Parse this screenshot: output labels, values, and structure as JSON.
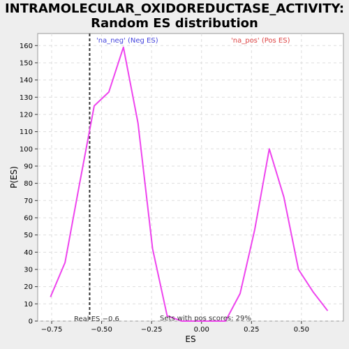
{
  "title_line1": "INTRAMOLECULAR_OXIDOREDUCTASE_ACTIVITY:",
  "title_line2": "Random ES distribution",
  "chart_data": {
    "type": "line",
    "xlabel": "ES",
    "ylabel": "P(ES)",
    "xlim": [
      -0.82,
      0.71
    ],
    "ylim": [
      0,
      167
    ],
    "x_ticks": [
      -0.75,
      -0.5,
      -0.25,
      0.0,
      0.25,
      0.5
    ],
    "x_tick_labels": [
      "−0.75",
      "−0.50",
      "−0.25",
      "0.00",
      "0.25",
      "0.50"
    ],
    "y_ticks": [
      0,
      10,
      20,
      30,
      40,
      50,
      60,
      70,
      80,
      90,
      100,
      110,
      120,
      130,
      140,
      150,
      160
    ],
    "grid": true,
    "series": [
      {
        "color": "#ee44ee",
        "x": [
          -0.756,
          -0.683,
          -0.61,
          -0.537,
          -0.464,
          -0.391,
          -0.318,
          -0.245,
          -0.172,
          -0.099,
          -0.026,
          0.047,
          0.12,
          0.193,
          0.266,
          0.339,
          0.412,
          0.485,
          0.558,
          0.631
        ],
        "y": [
          14,
          34,
          80,
          125,
          133,
          159,
          115,
          42,
          3,
          0,
          0,
          0,
          0,
          16,
          53,
          100,
          72,
          30,
          17,
          6
        ]
      }
    ],
    "real_es_line": {
      "x": -0.56,
      "color": "#333333",
      "style": "dashed"
    },
    "annotations": {
      "neg_label": "'na_neg' (Neg ES)",
      "neg_color": "#4444dd",
      "pos_label": "'na_pos' (Pos ES)",
      "pos_color": "#dd4444",
      "real_es_label": "Real ES −0.6",
      "pos_scores_label": "Sets with pos scores: 29%"
    }
  }
}
